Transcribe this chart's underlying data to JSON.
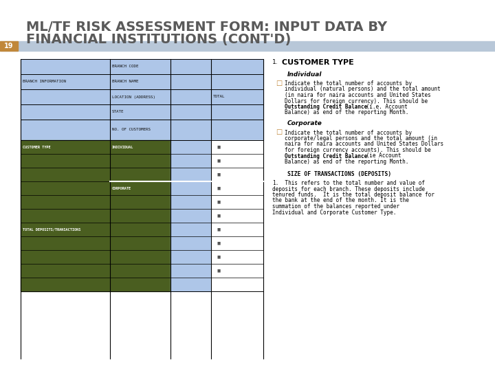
{
  "title_line1": "ML/TF RISK ASSESSMENT FORM: INPUT DATA BY",
  "title_line2": "FINANCIAL INSTITUTIONS (CONT'D)",
  "title_color": "#5a5a5a",
  "slide_number": "19",
  "slide_num_bg": "#c0873a",
  "slide_num_text_color": "#ffffff",
  "header_bar_color": "#b8c7d8",
  "table_blue_light": "#aec6e8",
  "table_green_dark": "#4a5e20",
  "table_white": "#ffffff",
  "branch_info_label": "BRANCH INFORMATION",
  "branch_code": "BRANCH CODE",
  "branch_name": "BRANCH NAME",
  "location_label": "LOCATION (ADDRESS)",
  "state_label": "STATE",
  "no_customers": "NO. OF CUSTOMERS",
  "total_label": "TOTAL",
  "customer_type_label": "CUSTOMER TYPE",
  "individual_label": "INDIVIDUAL",
  "corporate_label": "CORPORATE",
  "total_transactions_label": "TOTAL DEPOSITS/TRANSACTIONS",
  "right_heading": "CUSTOMER TYPE",
  "right_subheading1": "Individual",
  "right_subheading2": "Corporate",
  "right_subheading3": "SIZE OF TRANSACTIONS (DEPOSITS)",
  "bg_color": "#ffffff"
}
